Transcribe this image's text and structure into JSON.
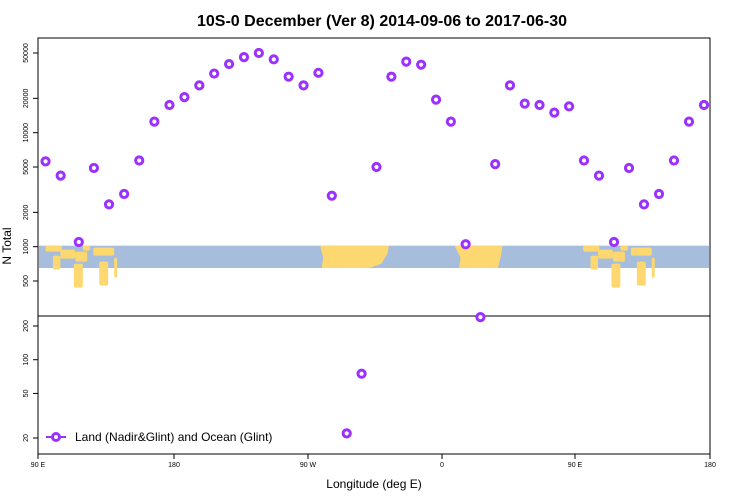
{
  "chart_data": {
    "type": "scatter",
    "title": "10S-0 December (Ver 8)   2014-09-06 to 2017-06-30",
    "xlabel": "Longitude (deg E)",
    "ylabel": "N Total",
    "x_axis": {
      "range_deg_e": [
        90,
        450
      ],
      "ticks": [
        {
          "value": 90,
          "label": "90 E"
        },
        {
          "value": 180,
          "label": "180"
        },
        {
          "value": 270,
          "label": "90 W"
        },
        {
          "value": 360,
          "label": "0"
        },
        {
          "value": 450,
          "label": "90 E"
        },
        {
          "value": 540,
          "label": "180"
        }
      ],
      "range_full": [
        90,
        540
      ]
    },
    "y_axis_upper": {
      "scale": "log",
      "ticks": [
        500,
        1000,
        2000,
        5000,
        10000,
        20000,
        50000
      ]
    },
    "y_axis_lower": {
      "scale": "log",
      "ticks": [
        20,
        50,
        100,
        200
      ]
    },
    "series": [
      {
        "name": "Land (Nadir&Glint) and Ocean (Glint)",
        "color": "#9b30ff",
        "x": [
          95,
          105,
          117,
          127,
          137,
          147,
          157,
          167,
          177,
          187,
          197,
          207,
          217,
          227,
          237,
          247,
          257,
          267,
          277,
          286,
          296,
          306,
          316,
          326,
          336,
          346,
          356,
          366,
          376,
          386,
          396,
          406,
          416,
          426,
          436,
          446,
          456,
          466,
          476,
          486,
          496,
          506,
          516,
          526,
          536
        ],
        "y": [
          5600,
          4200,
          1100,
          4900,
          2350,
          2900,
          5700,
          12500,
          17500,
          20500,
          26000,
          33000,
          40000,
          46000,
          50000,
          44000,
          31000,
          26000,
          33500,
          2800,
          22,
          75,
          5000,
          31000,
          42000,
          39500,
          19500,
          12500,
          1050,
          240,
          5300,
          26000,
          18000,
          17500,
          15000,
          17000,
          5700,
          4200,
          1100,
          4900,
          2350,
          2900,
          5700,
          12500,
          17500
        ]
      }
    ],
    "map_band": {
      "ocean_color": "#a6bddb",
      "land_color": "#fdd870"
    },
    "legend": {
      "position": "bottom-left",
      "label": "Land (Nadir&Glint) and Ocean (Glint)"
    },
    "grid": false
  }
}
